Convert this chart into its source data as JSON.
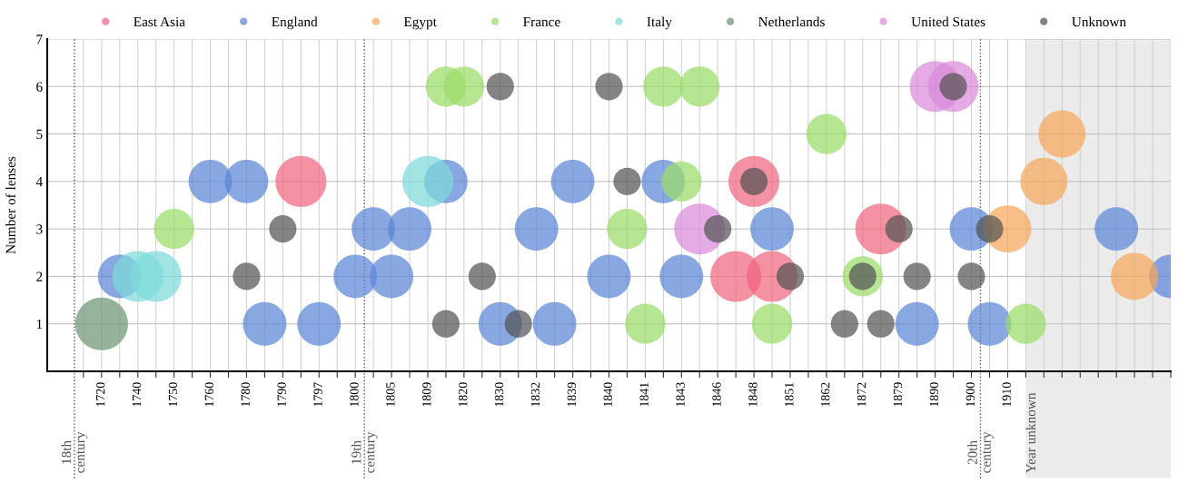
{
  "chart_data": {
    "type": "bubble",
    "ylabel": "Number of lenses",
    "ylim": [
      0,
      7
    ],
    "yticks": [
      1,
      2,
      3,
      4,
      5,
      6,
      7
    ],
    "categories": [
      null,
      "1720",
      null,
      "1740",
      null,
      "1750",
      null,
      "1760",
      null,
      "1780",
      null,
      "1790",
      null,
      "1797",
      null,
      "1800",
      null,
      "1805",
      null,
      "1809",
      null,
      "1820",
      null,
      "1830",
      null,
      "1832",
      null,
      "1839",
      null,
      "1840",
      null,
      "1841",
      null,
      "1843",
      null,
      "1846",
      null,
      "1848",
      null,
      "1851",
      null,
      "1862",
      null,
      "1872",
      null,
      "1879",
      null,
      "1890",
      null,
      "1900",
      null,
      "1910",
      null,
      null,
      null,
      null,
      null,
      null,
      null,
      null,
      null
    ],
    "grid": true,
    "legend": "top",
    "annotations": [
      "18th century",
      "19th century",
      "20th century",
      "Year unknown"
    ],
    "series": [
      {
        "name": "East Asia",
        "color": "#f0677e",
        "values": [
          null,
          null,
          null,
          null,
          null,
          null,
          null,
          null,
          null,
          null,
          null,
          null,
          4,
          null,
          null,
          null,
          null,
          null,
          null,
          null,
          null,
          null,
          null,
          null,
          null,
          null,
          null,
          null,
          null,
          null,
          null,
          null,
          null,
          null,
          null,
          null,
          2,
          4,
          2,
          null,
          null,
          null,
          null,
          null,
          3,
          null,
          null,
          null,
          null,
          null,
          null,
          null,
          null,
          null,
          null,
          null,
          null,
          null,
          null,
          null,
          null
        ],
        "sizes": [
          null,
          null,
          null,
          null,
          null,
          null,
          null,
          null,
          null,
          null,
          null,
          null,
          0.93,
          null,
          null,
          null,
          null,
          null,
          null,
          null,
          null,
          null,
          null,
          null,
          null,
          null,
          null,
          null,
          null,
          null,
          null,
          null,
          null,
          null,
          null,
          null,
          0.93,
          0.93,
          0.93,
          null,
          null,
          null,
          null,
          null,
          0.93,
          null,
          null,
          null,
          null,
          null,
          null,
          null,
          null,
          null,
          null,
          null,
          null,
          null,
          null,
          null,
          null
        ]
      },
      {
        "name": "England",
        "color": "#5b87d6",
        "values": [
          null,
          null,
          2,
          null,
          null,
          null,
          null,
          4,
          null,
          4,
          1,
          null,
          null,
          1,
          null,
          2,
          3,
          2,
          3,
          null,
          4,
          null,
          null,
          1,
          null,
          3,
          1,
          4,
          null,
          2,
          null,
          null,
          4,
          2,
          null,
          null,
          null,
          null,
          3,
          null,
          null,
          null,
          null,
          null,
          null,
          null,
          1,
          null,
          null,
          3,
          1,
          null,
          null,
          null,
          null,
          null,
          null,
          3,
          null,
          null,
          2
        ],
        "sizes": [
          null,
          null,
          0.68,
          null,
          null,
          null,
          null,
          0.68,
          null,
          0.68,
          0.68,
          null,
          null,
          0.68,
          null,
          0.68,
          0.68,
          0.68,
          0.68,
          null,
          0.68,
          null,
          null,
          0.68,
          null,
          0.68,
          0.68,
          0.68,
          null,
          0.68,
          null,
          null,
          0.68,
          0.68,
          null,
          null,
          null,
          null,
          0.68,
          null,
          null,
          null,
          null,
          null,
          null,
          null,
          0.68,
          null,
          null,
          0.68,
          0.68,
          null,
          null,
          null,
          null,
          null,
          null,
          0.68,
          null,
          null,
          0.68
        ]
      },
      {
        "name": "Egypt",
        "color": "#f5a85a",
        "values": [
          null,
          null,
          null,
          null,
          null,
          null,
          null,
          null,
          null,
          null,
          null,
          null,
          null,
          null,
          null,
          null,
          null,
          null,
          null,
          null,
          null,
          null,
          null,
          null,
          null,
          null,
          null,
          null,
          null,
          null,
          null,
          null,
          null,
          null,
          null,
          null,
          null,
          null,
          null,
          null,
          null,
          null,
          null,
          null,
          null,
          null,
          null,
          null,
          null,
          null,
          null,
          3,
          null,
          4,
          5,
          null,
          null,
          null,
          2,
          null,
          null
        ],
        "sizes": [
          null,
          null,
          null,
          null,
          null,
          null,
          null,
          null,
          null,
          null,
          null,
          null,
          null,
          null,
          null,
          null,
          null,
          null,
          null,
          null,
          null,
          null,
          null,
          null,
          null,
          null,
          null,
          null,
          null,
          null,
          null,
          null,
          null,
          null,
          null,
          null,
          null,
          null,
          null,
          null,
          null,
          null,
          null,
          null,
          null,
          null,
          null,
          null,
          null,
          null,
          null,
          0.8,
          null,
          0.8,
          0.8,
          null,
          null,
          null,
          0.8,
          null,
          null
        ]
      },
      {
        "name": "France",
        "color": "#9bdc6a",
        "values": [
          null,
          null,
          null,
          null,
          null,
          3,
          null,
          null,
          null,
          null,
          null,
          null,
          null,
          null,
          null,
          null,
          null,
          null,
          null,
          null,
          6,
          6,
          null,
          null,
          null,
          null,
          null,
          null,
          null,
          null,
          3,
          1,
          6,
          4,
          6,
          null,
          null,
          null,
          1,
          null,
          null,
          5,
          null,
          2,
          null,
          null,
          null,
          null,
          null,
          null,
          null,
          null,
          1,
          null,
          null,
          null,
          null,
          null,
          null,
          null,
          null
        ],
        "sizes": [
          null,
          null,
          null,
          null,
          null,
          0.58,
          null,
          null,
          null,
          null,
          null,
          null,
          null,
          null,
          null,
          null,
          null,
          null,
          null,
          null,
          0.58,
          0.58,
          null,
          null,
          null,
          null,
          null,
          null,
          null,
          null,
          0.58,
          0.58,
          0.58,
          0.58,
          0.58,
          null,
          null,
          null,
          0.58,
          null,
          null,
          0.58,
          null,
          0.58,
          null,
          null,
          null,
          null,
          null,
          null,
          null,
          null,
          0.58,
          null,
          null,
          null,
          null,
          null,
          null,
          null,
          null
        ]
      },
      {
        "name": "Italy",
        "color": "#7ed9d9",
        "values": [
          null,
          null,
          null,
          2,
          2,
          null,
          null,
          null,
          null,
          null,
          null,
          null,
          null,
          null,
          null,
          null,
          null,
          null,
          null,
          4,
          null,
          null,
          null,
          null,
          null,
          null,
          null,
          null,
          null,
          null,
          null,
          null,
          null,
          null,
          null,
          null,
          null,
          null,
          null,
          null,
          null,
          null,
          null,
          null,
          null,
          null,
          null,
          null,
          null,
          null,
          null,
          null,
          null,
          null,
          null,
          null,
          null,
          null,
          null,
          null,
          null
        ],
        "sizes": [
          null,
          null,
          null,
          0.93,
          0.93,
          null,
          null,
          null,
          null,
          null,
          null,
          null,
          null,
          null,
          null,
          null,
          null,
          null,
          null,
          0.93,
          null,
          null,
          null,
          null,
          null,
          null,
          null,
          null,
          null,
          null,
          null,
          null,
          null,
          null,
          null,
          null,
          null,
          null,
          null,
          null,
          null,
          null,
          null,
          null,
          null,
          null,
          null,
          null,
          null,
          null,
          null,
          null,
          null,
          null,
          null,
          null,
          null,
          null,
          null,
          null,
          null
        ]
      },
      {
        "name": "Netherlands",
        "color": "#6e9474",
        "values": [
          null,
          1,
          null,
          null,
          null,
          null,
          null,
          null,
          null,
          null,
          null,
          null,
          null,
          null,
          null,
          null,
          null,
          null,
          null,
          null,
          null,
          null,
          null,
          null,
          null,
          null,
          null,
          null,
          null,
          null,
          null,
          null,
          null,
          null,
          null,
          null,
          null,
          null,
          null,
          null,
          null,
          null,
          null,
          null,
          null,
          null,
          null,
          null,
          null,
          null,
          null,
          null,
          null,
          null,
          null,
          null,
          null,
          null,
          null,
          null,
          null
        ],
        "sizes": [
          null,
          1,
          null,
          null,
          null,
          null,
          null,
          null,
          null,
          null,
          null,
          null,
          null,
          null,
          null,
          null,
          null,
          null,
          null,
          null,
          null,
          null,
          null,
          null,
          null,
          null,
          null,
          null,
          null,
          null,
          null,
          null,
          null,
          null,
          null,
          null,
          null,
          null,
          null,
          null,
          null,
          null,
          null,
          null,
          null,
          null,
          null,
          null,
          null,
          null,
          null,
          null,
          null,
          null,
          null,
          null,
          null,
          null,
          null,
          null,
          null
        ]
      },
      {
        "name": "United States",
        "color": "#d98ad9",
        "values": [
          null,
          null,
          null,
          null,
          null,
          null,
          null,
          null,
          null,
          null,
          null,
          null,
          null,
          null,
          null,
          null,
          null,
          null,
          null,
          null,
          null,
          null,
          null,
          null,
          null,
          null,
          null,
          null,
          null,
          null,
          null,
          null,
          null,
          null,
          3,
          null,
          null,
          null,
          null,
          null,
          null,
          null,
          null,
          null,
          null,
          null,
          null,
          6,
          6,
          null,
          null,
          null,
          null,
          null,
          null,
          null,
          null,
          null,
          null,
          null,
          null
        ],
        "sizes": [
          null,
          null,
          null,
          null,
          null,
          null,
          null,
          null,
          null,
          null,
          null,
          null,
          null,
          null,
          null,
          null,
          null,
          null,
          null,
          null,
          null,
          null,
          null,
          null,
          null,
          null,
          null,
          null,
          null,
          null,
          null,
          null,
          null,
          null,
          0.93,
          null,
          null,
          null,
          null,
          null,
          null,
          null,
          null,
          null,
          null,
          null,
          null,
          0.93,
          0.93,
          null,
          null,
          null,
          null,
          null,
          null,
          null,
          null,
          null,
          null,
          null,
          null
        ]
      },
      {
        "name": "Unknown",
        "color": "#555555",
        "values": [
          null,
          null,
          null,
          null,
          null,
          null,
          null,
          null,
          null,
          2,
          null,
          3,
          null,
          null,
          null,
          null,
          null,
          null,
          null,
          null,
          1,
          null,
          2,
          6,
          1,
          null,
          null,
          null,
          null,
          6,
          4,
          null,
          null,
          null,
          null,
          3,
          null,
          4,
          null,
          2,
          null,
          null,
          1,
          2,
          1,
          3,
          2,
          null,
          6,
          2,
          3,
          null,
          null,
          null,
          null,
          null,
          null,
          null,
          null,
          null,
          null
        ],
        "sizes": [
          null,
          null,
          null,
          null,
          null,
          null,
          null,
          null,
          null,
          0.27,
          null,
          0.27,
          null,
          null,
          null,
          null,
          null,
          null,
          null,
          null,
          0.27,
          null,
          0.27,
          0.27,
          0.27,
          null,
          null,
          null,
          null,
          0.27,
          0.27,
          null,
          null,
          null,
          null,
          0.27,
          null,
          0.27,
          null,
          0.27,
          null,
          null,
          0.27,
          0.27,
          0.27,
          0.27,
          0.27,
          null,
          0.27,
          0.27,
          0.27,
          null,
          null,
          null,
          null,
          null,
          null,
          null,
          null,
          null,
          null
        ]
      }
    ]
  }
}
